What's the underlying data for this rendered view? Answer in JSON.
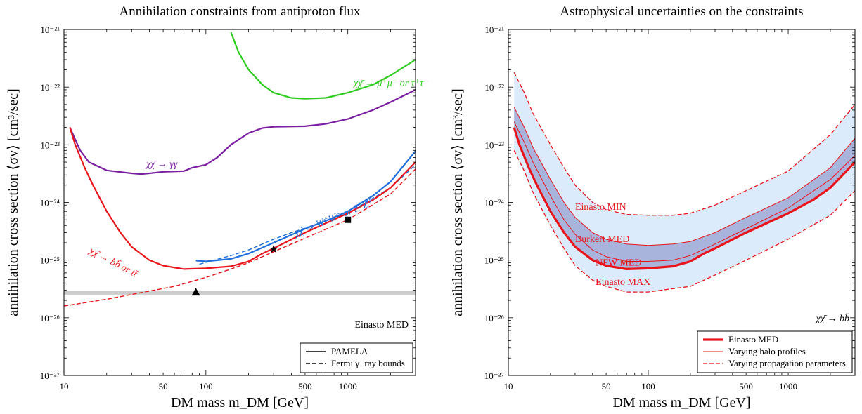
{
  "chart_data": [
    {
      "type": "line",
      "title": "Annihilation constraints from antiproton flux",
      "xlabel": "DM mass m_DM [GeV]",
      "ylabel": "annihilation cross section ⟨σv⟩ [cm³/sec]",
      "xscale": "log",
      "yscale": "log",
      "xlim": [
        10,
        3000
      ],
      "ylim": [
        1e-27,
        1e-21
      ],
      "xticks": [
        {
          "v": 10,
          "label": "10"
        },
        {
          "v": 50,
          "label": "50"
        },
        {
          "v": 100,
          "label": "100"
        },
        {
          "v": 500,
          "label": "500"
        },
        {
          "v": 1000,
          "label": "1000"
        }
      ],
      "yticks": [
        {
          "v": 1e-27,
          "label": "10⁻²⁷"
        },
        {
          "v": 1e-26,
          "label": "10⁻²⁶"
        },
        {
          "v": 1e-25,
          "label": "10⁻²⁵"
        },
        {
          "v": 1e-24,
          "label": "10⁻²⁴"
        },
        {
          "v": 1e-23,
          "label": "10⁻²³"
        },
        {
          "v": 1e-22,
          "label": "10⁻²²"
        },
        {
          "v": 1e-21,
          "label": "10⁻²¹"
        }
      ],
      "corner_label": "Einasto MED",
      "hline": {
        "y": 2.7e-26,
        "color": "#cccccc"
      },
      "series": [
        {
          "id": "mumu",
          "color": "#2ecc1f",
          "dash": false,
          "label": "χχ̄ → μ⁺μ⁻ or τ⁺τ⁻",
          "label_at": [
            1100,
            1.05e-22
          ],
          "points": [
            [
              150,
              9e-22
            ],
            [
              170,
              4e-22
            ],
            [
              200,
              2e-22
            ],
            [
              250,
              1.1e-22
            ],
            [
              300,
              8e-23
            ],
            [
              400,
              6.5e-23
            ],
            [
              500,
              6.3e-23
            ],
            [
              700,
              6.5e-23
            ],
            [
              1000,
              8e-23
            ],
            [
              1500,
              1.1e-22
            ],
            [
              2000,
              1.6e-22
            ],
            [
              3000,
              3e-22
            ]
          ]
        },
        {
          "id": "gamma",
          "color": "#7b1fa2",
          "dash": false,
          "label": "χχ̄ → γγ",
          "label_at": [
            38,
            4.1e-24
          ],
          "points": [
            [
              11,
              2e-23
            ],
            [
              13,
              8e-24
            ],
            [
              15,
              5e-24
            ],
            [
              20,
              3.6e-24
            ],
            [
              30,
              3.2e-24
            ],
            [
              35,
              3.1e-24
            ],
            [
              40,
              3.2e-24
            ],
            [
              50,
              3.4e-24
            ],
            [
              70,
              3.5e-24
            ],
            [
              80,
              4e-24
            ],
            [
              100,
              4.5e-24
            ],
            [
              120,
              6e-24
            ],
            [
              150,
              1e-23
            ],
            [
              200,
              1.6e-23
            ],
            [
              250,
              1.95e-23
            ],
            [
              300,
              2.05e-23
            ],
            [
              500,
              2.1e-23
            ],
            [
              700,
              2.3e-23
            ],
            [
              1000,
              2.8e-23
            ],
            [
              1500,
              4e-23
            ],
            [
              2000,
              5.5e-23
            ],
            [
              3000,
              9e-23
            ]
          ]
        },
        {
          "id": "ww_pamela",
          "color": "#1e6fdc",
          "dash": false,
          "label": "χχ̄ → W⁺W⁻ or Z⁰Z⁰",
          "label_at": [
            430,
            2.6e-25
          ],
          "points": [
            [
              85,
              9.8e-26
            ],
            [
              100,
              9.5e-26
            ],
            [
              150,
              1.05e-25
            ],
            [
              200,
              1.3e-25
            ],
            [
              300,
              2e-25
            ],
            [
              500,
              3.5e-25
            ],
            [
              700,
              4.8e-25
            ],
            [
              1000,
              7e-25
            ],
            [
              1500,
              1.3e-24
            ],
            [
              2000,
              2.3e-24
            ],
            [
              3000,
              7.8e-24
            ]
          ]
        },
        {
          "id": "ww_fermi",
          "color": "#1e6fdc",
          "dash": true,
          "points": [
            [
              90,
              8.5e-26
            ],
            [
              150,
              1.2e-25
            ],
            [
              200,
              1.5e-25
            ],
            [
              300,
              2.3e-25
            ],
            [
              400,
              3e-25
            ],
            [
              500,
              3.6e-25
            ],
            [
              1000,
              6.5e-25
            ],
            [
              2000,
              1.8e-24
            ],
            [
              3000,
              4.5e-24
            ]
          ]
        },
        {
          "id": "bb_pamela",
          "color": "#e8141a",
          "dash": false,
          "label": "χχ̄ → bb̄ or tt̄",
          "label_at": [
            15,
            1.35e-25
          ],
          "points": [
            [
              11,
              2e-23
            ],
            [
              12,
              1e-23
            ],
            [
              14,
              4e-24
            ],
            [
              16,
              2e-24
            ],
            [
              20,
              7e-25
            ],
            [
              25,
              3e-25
            ],
            [
              30,
              1.7e-25
            ],
            [
              40,
              1e-25
            ],
            [
              50,
              8e-26
            ],
            [
              70,
              7e-26
            ],
            [
              100,
              7.2e-26
            ],
            [
              150,
              7.8e-26
            ],
            [
              200,
              9.5e-26
            ],
            [
              250,
              1.3e-25
            ],
            [
              300,
              1.6e-25
            ],
            [
              500,
              3e-25
            ],
            [
              1000,
              6.5e-25
            ],
            [
              1500,
              1.1e-24
            ],
            [
              2000,
              1.8e-24
            ],
            [
              3000,
              5e-24
            ]
          ]
        },
        {
          "id": "bb_fermi",
          "color": "#e8141a",
          "dash": true,
          "points": [
            [
              10,
              1.6e-26
            ],
            [
              20,
              2.1e-26
            ],
            [
              40,
              2.9e-26
            ],
            [
              60,
              3.5e-26
            ],
            [
              100,
              5e-26
            ],
            [
              150,
              7e-26
            ],
            [
              200,
              9e-26
            ],
            [
              300,
              1.4e-25
            ],
            [
              500,
              2.4e-25
            ],
            [
              1000,
              5e-25
            ],
            [
              2000,
              1.4e-24
            ],
            [
              3000,
              3.8e-24
            ]
          ]
        }
      ],
      "markers": [
        {
          "shape": "triangle",
          "x": 85,
          "y": 2.8e-26
        },
        {
          "shape": "star",
          "x": 300,
          "y": 1.55e-25
        },
        {
          "shape": "square",
          "x": 1000,
          "y": 5e-25
        }
      ],
      "legend": {
        "placement": "bottom-right",
        "entries": [
          {
            "label": "PAMELA",
            "dash": false
          },
          {
            "label": "Fermi γ−ray bounds",
            "dash": true
          }
        ]
      }
    },
    {
      "type": "area",
      "title": "Astrophysical uncertainties on the constraints",
      "xlabel": "DM mass m_DM [GeV]",
      "ylabel": "annihilation cross section ⟨σv⟩ [cm³/sec]",
      "xscale": "log",
      "yscale": "log",
      "xlim": [
        10,
        3000
      ],
      "ylim": [
        1e-27,
        1e-21
      ],
      "xticks": [
        {
          "v": 10,
          "label": "10"
        },
        {
          "v": 50,
          "label": "50"
        },
        {
          "v": 100,
          "label": "100"
        },
        {
          "v": 500,
          "label": "500"
        },
        {
          "v": 1000,
          "label": "1000"
        }
      ],
      "yticks": [
        {
          "v": 1e-27,
          "label": "10⁻²⁷"
        },
        {
          "v": 1e-26,
          "label": "10⁻²⁶"
        },
        {
          "v": 1e-25,
          "label": "10⁻²⁵"
        },
        {
          "v": 1e-24,
          "label": "10⁻²⁴"
        },
        {
          "v": 1e-23,
          "label": "10⁻²³"
        },
        {
          "v": 1e-22,
          "label": "10⁻²²"
        },
        {
          "v": 1e-21,
          "label": "10⁻²¹"
        }
      ],
      "corner_label": "χχ̄ → bb̄",
      "band_colors": {
        "outer": "#dcebfb",
        "inner": "#a9b4dc"
      },
      "series": [
        {
          "id": "einasto_min",
          "name": "Einasto MIN",
          "color": "#e8141a",
          "dash": true,
          "width": 1.3,
          "label_at": [
            30,
            7.5e-25
          ],
          "points": [
            [
              11,
              1.8e-22
            ],
            [
              13,
              8e-23
            ],
            [
              15,
              3.5e-23
            ],
            [
              20,
              1e-23
            ],
            [
              25,
              4e-24
            ],
            [
              30,
              2e-24
            ],
            [
              40,
              1e-24
            ],
            [
              50,
              7.5e-25
            ],
            [
              70,
              6.2e-25
            ],
            [
              100,
              6e-25
            ],
            [
              150,
              6e-25
            ],
            [
              200,
              6.5e-25
            ],
            [
              300,
              9e-25
            ],
            [
              500,
              1.6e-24
            ],
            [
              1000,
              3.5e-24
            ],
            [
              2000,
              1.5e-23
            ],
            [
              3000,
              5e-23
            ]
          ]
        },
        {
          "id": "burkert_med",
          "name": "Burkert MED",
          "color": "#e8141a",
          "dash": false,
          "width": 1,
          "label_at": [
            30,
            2.05e-25
          ],
          "points": [
            [
              11,
              4.5e-23
            ],
            [
              13,
              2e-23
            ],
            [
              15,
              9e-24
            ],
            [
              20,
              2.5e-24
            ],
            [
              25,
              1e-24
            ],
            [
              30,
              5.5e-25
            ],
            [
              40,
              3e-25
            ],
            [
              50,
              2.3e-25
            ],
            [
              70,
              1.9e-25
            ],
            [
              100,
              1.8e-25
            ],
            [
              150,
              1.9e-25
            ],
            [
              200,
              2.1e-25
            ],
            [
              300,
              3e-25
            ],
            [
              500,
              5.5e-25
            ],
            [
              1000,
              1.2e-24
            ],
            [
              2000,
              4e-24
            ],
            [
              3000,
              1.3e-23
            ]
          ]
        },
        {
          "id": "nfw_med",
          "name": "NFW MED",
          "color": "#e8141a",
          "dash": false,
          "width": 1,
          "label_at": [
            42,
            8e-26
          ],
          "points": [
            [
              11,
              2.5e-23
            ],
            [
              13,
              1.1e-23
            ],
            [
              15,
              5e-24
            ],
            [
              20,
              1.3e-24
            ],
            [
              25,
              5e-25
            ],
            [
              30,
              2.8e-25
            ],
            [
              40,
              1.5e-25
            ],
            [
              50,
              1.15e-25
            ],
            [
              70,
              9.5e-26
            ],
            [
              100,
              9.5e-26
            ],
            [
              150,
              1e-25
            ],
            [
              200,
              1.2e-25
            ],
            [
              300,
              1.9e-25
            ],
            [
              500,
              3.5e-25
            ],
            [
              1000,
              8e-25
            ],
            [
              2000,
              2.5e-24
            ],
            [
              3000,
              6.5e-24
            ]
          ]
        },
        {
          "id": "einasto_med",
          "name": "Einasto MED",
          "color": "#e8141a",
          "dash": false,
          "width": 3.2,
          "points": [
            [
              11,
              2e-23
            ],
            [
              12,
              1e-23
            ],
            [
              14,
              4e-24
            ],
            [
              16,
              2e-24
            ],
            [
              20,
              7e-25
            ],
            [
              25,
              3e-25
            ],
            [
              30,
              1.7e-25
            ],
            [
              40,
              1e-25
            ],
            [
              50,
              8e-26
            ],
            [
              70,
              7e-26
            ],
            [
              100,
              7.2e-26
            ],
            [
              150,
              7.8e-26
            ],
            [
              200,
              9.5e-26
            ],
            [
              250,
              1.3e-25
            ],
            [
              300,
              1.6e-25
            ],
            [
              500,
              3e-25
            ],
            [
              1000,
              6.5e-25
            ],
            [
              1500,
              1.1e-24
            ],
            [
              2000,
              1.8e-24
            ],
            [
              3000,
              5e-24
            ]
          ]
        },
        {
          "id": "einasto_max",
          "name": "Einasto MAX",
          "color": "#e8141a",
          "dash": true,
          "width": 1.3,
          "label_at": [
            42,
            3.7e-26
          ],
          "points": [
            [
              11,
              8e-24
            ],
            [
              13,
              3.5e-24
            ],
            [
              15,
              1.5e-24
            ],
            [
              20,
              4e-25
            ],
            [
              25,
              1.6e-25
            ],
            [
              30,
              8e-26
            ],
            [
              40,
              4.5e-26
            ],
            [
              50,
              3.5e-26
            ],
            [
              70,
              2.8e-26
            ],
            [
              100,
              2.8e-26
            ],
            [
              150,
              3.2e-26
            ],
            [
              200,
              3.5e-26
            ],
            [
              300,
              5.5e-26
            ],
            [
              500,
              1e-25
            ],
            [
              1000,
              2.3e-25
            ],
            [
              2000,
              6e-25
            ],
            [
              3000,
              1.6e-24
            ]
          ]
        }
      ],
      "legend": {
        "placement": "bottom-right",
        "entries": [
          {
            "label": "Einasto MED",
            "dash": false,
            "width": 3.2
          },
          {
            "label": "Varying halo profiles",
            "dash": false,
            "width": 1
          },
          {
            "label": "Varying propagation parameters",
            "dash": true,
            "width": 1.3
          }
        ]
      }
    }
  ]
}
